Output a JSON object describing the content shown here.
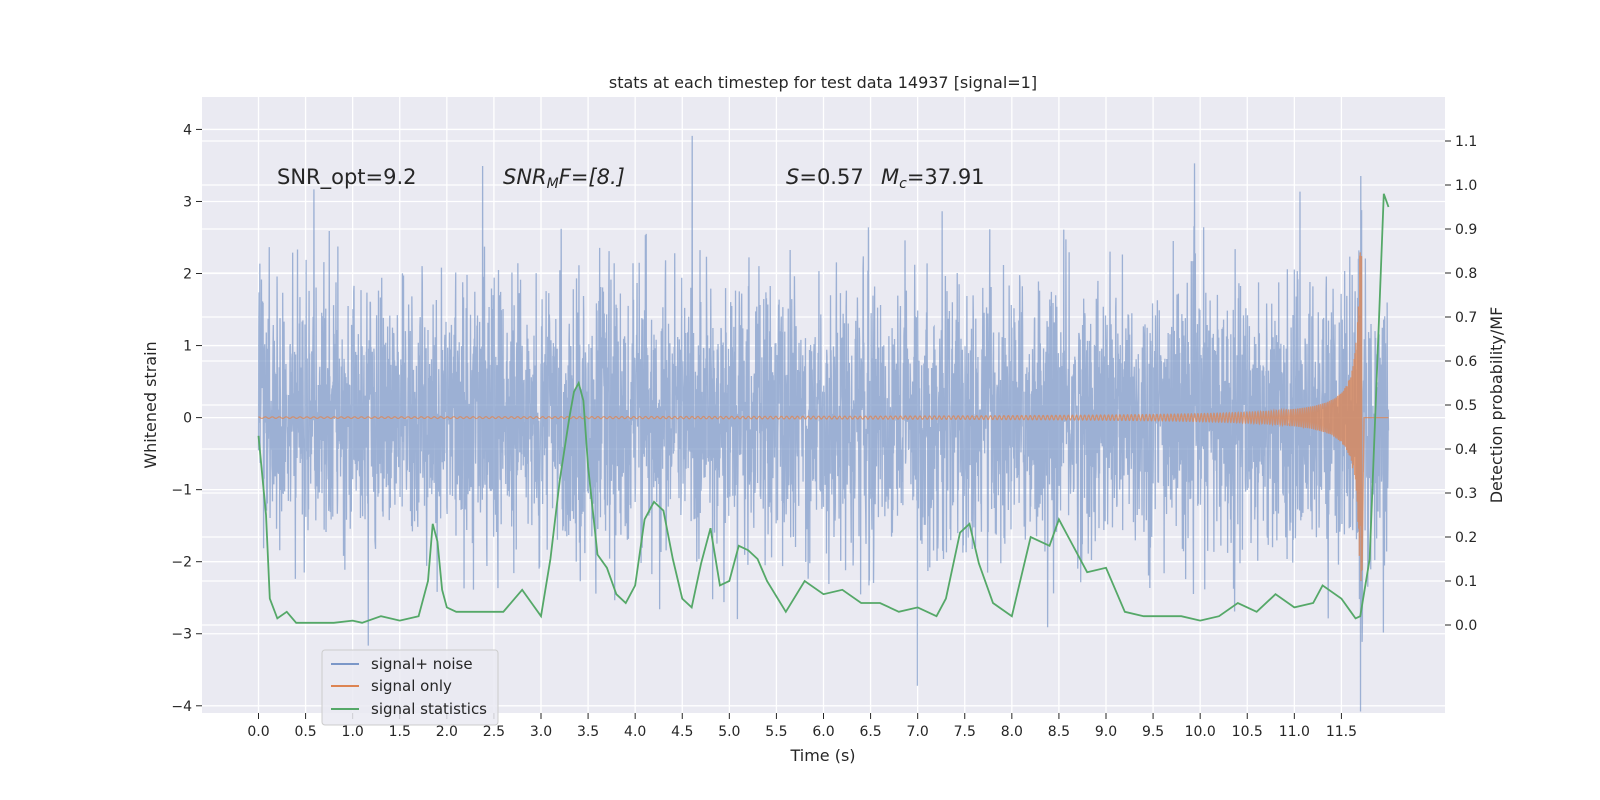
{
  "chart_data": {
    "type": "line",
    "title": "stats at each timestep for test data 14937 [signal=1]",
    "xlabel": "Time (s)",
    "ylabel": "Whitened strain",
    "ylabel_right": "Detection probability/MF",
    "xlim": [
      -0.6,
      12.6
    ],
    "ylim": [
      -4.1,
      4.45
    ],
    "ylim_right": [
      -0.2,
      1.2
    ],
    "grid": true,
    "legend_position": "lower-left",
    "x_ticks": [
      "0.0",
      "0.5",
      "1.0",
      "1.5",
      "2.0",
      "2.5",
      "3.0",
      "3.5",
      "4.0",
      "4.5",
      "5.0",
      "5.5",
      "6.0",
      "6.5",
      "7.0",
      "7.5",
      "8.0",
      "8.5",
      "9.0",
      "9.5",
      "10.0",
      "10.5",
      "11.0",
      "11.5"
    ],
    "y_ticks": [
      "4",
      "3",
      "2",
      "1",
      "0",
      "−1",
      "−2",
      "−3",
      "−4"
    ],
    "y_ticks_right": [
      "1.1",
      "1.0",
      "0.9",
      "0.8",
      "0.7",
      "0.6",
      "0.5",
      "0.4",
      "0.3",
      "0.2",
      "0.1",
      "0.0"
    ],
    "annotations": {
      "snr_opt": "SNR_opt=9.2",
      "snr_mf_name": "SNR",
      "snr_mf_sub": "M",
      "snr_mf_rest": "F=[8.]",
      "s_name": "S",
      "s_rest": "=0.57",
      "mc_name": "M",
      "mc_sub": "c",
      "mc_rest": "=37.91"
    },
    "colors": {
      "signal_noise": "#7b97c8",
      "signal_only": "#dd8452",
      "signal_statistics": "#55a868",
      "background": "#eaeaf2",
      "grid": "#ffffff"
    },
    "series": [
      {
        "name": "signal+ noise",
        "axis": "left",
        "style": "dense noise band",
        "x_range": [
          0.0,
          12.0
        ],
        "typical_band": [
          -2.0,
          2.0
        ],
        "max": 4.1,
        "min": -3.7
      },
      {
        "name": "signal only",
        "axis": "left",
        "style": "chirp",
        "x_range": [
          0.0,
          12.0
        ],
        "chirp_peak_time": 11.72,
        "peak_amplitude": 2.3
      },
      {
        "name": "signal statistics",
        "axis": "right",
        "x": [
          0.0,
          0.08,
          0.12,
          0.2,
          0.3,
          0.4,
          0.5,
          0.6,
          0.8,
          1.0,
          1.1,
          1.3,
          1.5,
          1.7,
          1.8,
          1.85,
          1.9,
          1.95,
          2.0,
          2.1,
          2.2,
          2.4,
          2.6,
          2.8,
          2.9,
          3.0,
          3.1,
          3.2,
          3.3,
          3.35,
          3.4,
          3.45,
          3.5,
          3.6,
          3.7,
          3.8,
          3.9,
          4.0,
          4.1,
          4.2,
          4.3,
          4.4,
          4.5,
          4.6,
          4.7,
          4.8,
          4.9,
          5.0,
          5.1,
          5.2,
          5.3,
          5.4,
          5.6,
          5.8,
          6.0,
          6.2,
          6.4,
          6.6,
          6.8,
          7.0,
          7.2,
          7.3,
          7.45,
          7.55,
          7.65,
          7.8,
          8.0,
          8.2,
          8.4,
          8.5,
          8.6,
          8.8,
          9.0,
          9.2,
          9.4,
          9.6,
          9.8,
          10.0,
          10.2,
          10.4,
          10.6,
          10.8,
          11.0,
          11.2,
          11.3,
          11.5,
          11.6,
          11.65,
          11.7,
          11.8,
          11.9,
          11.95,
          12.0
        ],
        "y": [
          0.43,
          0.25,
          0.06,
          0.015,
          0.03,
          0.005,
          0.005,
          0.005,
          0.005,
          0.01,
          0.005,
          0.02,
          0.01,
          0.02,
          0.1,
          0.23,
          0.19,
          0.08,
          0.04,
          0.03,
          0.03,
          0.03,
          0.03,
          0.08,
          0.05,
          0.02,
          0.15,
          0.33,
          0.47,
          0.53,
          0.55,
          0.51,
          0.36,
          0.16,
          0.13,
          0.07,
          0.05,
          0.09,
          0.24,
          0.28,
          0.26,
          0.15,
          0.06,
          0.04,
          0.14,
          0.22,
          0.09,
          0.1,
          0.18,
          0.17,
          0.15,
          0.1,
          0.03,
          0.1,
          0.07,
          0.08,
          0.05,
          0.05,
          0.03,
          0.04,
          0.02,
          0.06,
          0.21,
          0.23,
          0.14,
          0.05,
          0.02,
          0.2,
          0.18,
          0.24,
          0.2,
          0.12,
          0.13,
          0.03,
          0.02,
          0.02,
          0.02,
          0.01,
          0.02,
          0.05,
          0.03,
          0.07,
          0.04,
          0.05,
          0.09,
          0.06,
          0.03,
          0.015,
          0.02,
          0.15,
          0.7,
          0.98,
          0.95
        ]
      }
    ]
  },
  "legend": {
    "signal_noise": "signal+ noise",
    "signal_only": "signal only",
    "signal_statistics": "signal statistics"
  }
}
